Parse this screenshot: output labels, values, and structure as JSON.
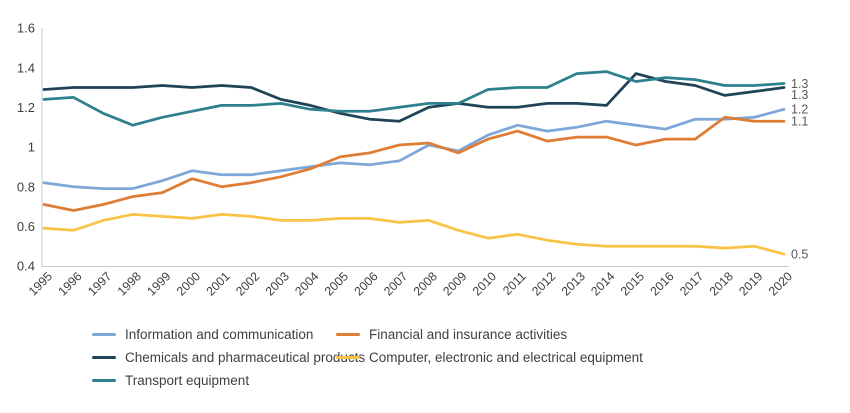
{
  "chart_data": {
    "type": "line",
    "title": "",
    "xlabel": "",
    "ylabel": "",
    "x": [
      1995,
      1996,
      1997,
      1998,
      1999,
      2000,
      2001,
      2002,
      2003,
      2004,
      2005,
      2006,
      2007,
      2008,
      2009,
      2010,
      2011,
      2012,
      2013,
      2014,
      2015,
      2016,
      2017,
      2018,
      2019,
      2020
    ],
    "y_axis": {
      "min": 0.4,
      "max": 1.6,
      "tick_labels": [
        "1.6",
        "1.4",
        "1.2",
        "1",
        "0.8",
        "0.6",
        "0.4"
      ],
      "tick_values": [
        1.6,
        1.4,
        1.2,
        1.0,
        0.8,
        0.6,
        0.4
      ]
    },
    "grid": false,
    "legend_position": "bottom",
    "series": [
      {
        "name": "Information and communication",
        "color": "#7DA7D9",
        "end_label": "1.2",
        "values": [
          0.82,
          0.8,
          0.79,
          0.79,
          0.83,
          0.88,
          0.86,
          0.86,
          0.88,
          0.9,
          0.92,
          0.91,
          0.93,
          1.01,
          0.98,
          1.06,
          1.11,
          1.08,
          1.1,
          1.13,
          1.11,
          1.09,
          1.14,
          1.14,
          1.15,
          1.19
        ]
      },
      {
        "name": "Financial and insurance activities",
        "color": "#DE7D33",
        "end_label": "1.1",
        "values": [
          0.71,
          0.68,
          0.71,
          0.75,
          0.77,
          0.84,
          0.8,
          0.82,
          0.85,
          0.89,
          0.95,
          0.97,
          1.01,
          1.02,
          0.97,
          1.04,
          1.08,
          1.03,
          1.05,
          1.05,
          1.01,
          1.04,
          1.04,
          1.15,
          1.13,
          1.13
        ]
      },
      {
        "name": "Chemicals and pharmaceutical products",
        "color": "#1F4357",
        "end_label": "1.3",
        "values": [
          1.29,
          1.3,
          1.3,
          1.3,
          1.31,
          1.3,
          1.31,
          1.3,
          1.24,
          1.21,
          1.17,
          1.14,
          1.13,
          1.2,
          1.22,
          1.2,
          1.2,
          1.22,
          1.22,
          1.21,
          1.37,
          1.33,
          1.31,
          1.26,
          1.28,
          1.3
        ]
      },
      {
        "name": "Computer, electronic and electrical equipment",
        "color": "#F9C346",
        "end_label": "0.5",
        "values": [
          0.59,
          0.58,
          0.63,
          0.66,
          0.65,
          0.64,
          0.66,
          0.65,
          0.63,
          0.63,
          0.64,
          0.64,
          0.62,
          0.63,
          0.58,
          0.54,
          0.56,
          0.53,
          0.51,
          0.5,
          0.5,
          0.5,
          0.5,
          0.49,
          0.5,
          0.46
        ]
      },
      {
        "name": "Transport equipment",
        "color": "#2F808E",
        "end_label": "1.3",
        "values": [
          1.24,
          1.25,
          1.17,
          1.11,
          1.15,
          1.18,
          1.21,
          1.21,
          1.22,
          1.19,
          1.18,
          1.18,
          1.2,
          1.22,
          1.22,
          1.29,
          1.3,
          1.3,
          1.37,
          1.38,
          1.33,
          1.35,
          1.34,
          1.31,
          1.31,
          1.32
        ]
      }
    ],
    "draw_order": [
      0,
      2,
      4,
      1,
      3
    ]
  },
  "styles": {
    "background": "#FFFFFF",
    "axis_line_color": "#C9C9C9",
    "tick_text_color": "#404040",
    "end_label_color": "#595959",
    "legend_text_color": "#3F3F3F"
  }
}
